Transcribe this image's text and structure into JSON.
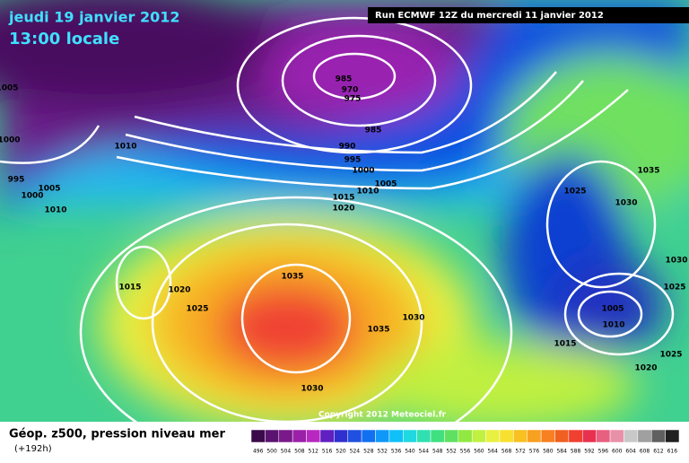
{
  "header": {
    "date": "jeudi 19 janvier 2012",
    "time": "13:00 locale",
    "run": "Run ECMWF 12Z du mercredi 11 janvier 2012"
  },
  "copyright": "Copyright 2012 Meteociel.fr",
  "isobar_labels": [
    "985",
    "970",
    "975",
    "985",
    "990",
    "995",
    "1000",
    "1005",
    "1010",
    "1015",
    "1020",
    "1005",
    "1000",
    "995",
    "1000",
    "1005",
    "1010",
    "1010",
    "1015",
    "1020",
    "1025",
    "1035",
    "1035",
    "1030",
    "1030",
    "1025",
    "1030",
    "1035",
    "1030",
    "1025",
    "1005",
    "1010",
    "1015",
    "1020",
    "1025"
  ],
  "legend": {
    "title": "Géop. z500, pression niveau mer",
    "lead": "(+192h)",
    "labels": [
      "496",
      "500",
      "504",
      "508",
      "512",
      "516",
      "520",
      "524",
      "528",
      "532",
      "536",
      "540",
      "544",
      "548",
      "552",
      "556",
      "560",
      "564",
      "568",
      "572",
      "576",
      "580",
      "584",
      "588",
      "592",
      "596",
      "600",
      "604",
      "608",
      "612",
      "616"
    ],
    "colors": [
      "#3a0a4a",
      "#5a1470",
      "#7a1a8a",
      "#9a20a8",
      "#b828c0",
      "#6020c0",
      "#3030d0",
      "#2050e0",
      "#1070f0",
      "#1098f8",
      "#10c0f8",
      "#20d8e0",
      "#30e0b0",
      "#40e080",
      "#60e060",
      "#90e840",
      "#c0f040",
      "#e8f040",
      "#f8e030",
      "#f8c020",
      "#f8a020",
      "#f88020",
      "#f06020",
      "#f04030",
      "#e83050",
      "#e86080",
      "#e890a8",
      "#c8c8c8",
      "#a0a0a0",
      "#606060",
      "#202020"
    ]
  }
}
